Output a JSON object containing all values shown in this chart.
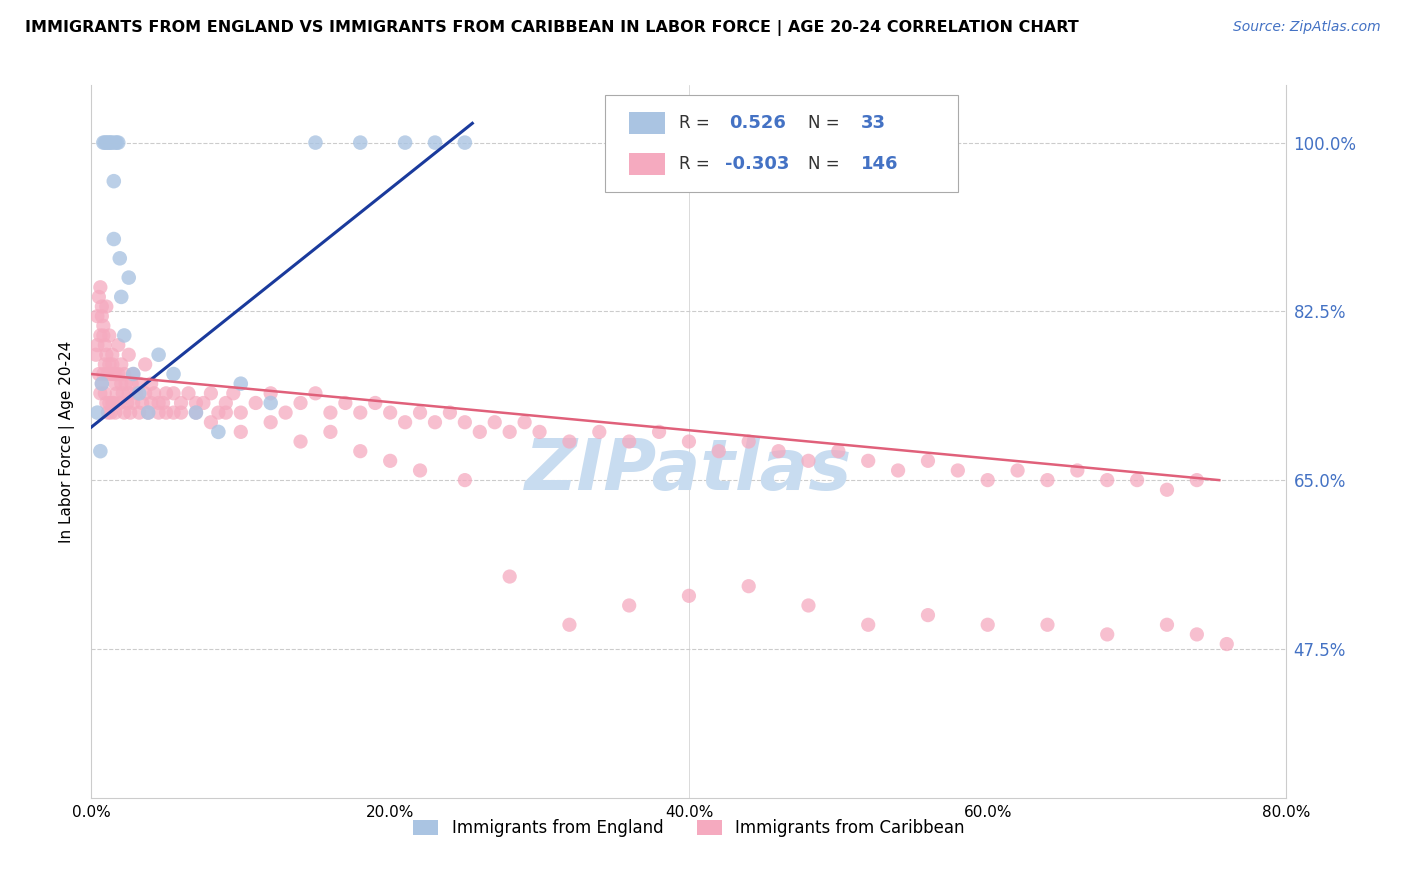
{
  "title": "IMMIGRANTS FROM ENGLAND VS IMMIGRANTS FROM CARIBBEAN IN LABOR FORCE | AGE 20-24 CORRELATION CHART",
  "source_text": "Source: ZipAtlas.com",
  "ylabel": "In Labor Force | Age 20-24",
  "x_tick_labels": [
    "0.0%",
    "20.0%",
    "40.0%",
    "60.0%",
    "80.0%"
  ],
  "x_tick_values": [
    0.0,
    0.2,
    0.4,
    0.6,
    0.8
  ],
  "y_tick_labels": [
    "100.0%",
    "82.5%",
    "65.0%",
    "47.5%"
  ],
  "y_tick_values": [
    1.0,
    0.825,
    0.65,
    0.475
  ],
  "xlim": [
    0.0,
    0.8
  ],
  "ylim": [
    0.32,
    1.06
  ],
  "R_england": 0.526,
  "N_england": 33,
  "R_caribbean": -0.303,
  "N_caribbean": 146,
  "england_scatter_color": "#aac4e2",
  "england_line_color": "#1a3a9c",
  "caribbean_scatter_color": "#f5aabf",
  "caribbean_line_color": "#e0607a",
  "watermark": "ZIPatlas",
  "watermark_color": "#c8dcf0",
  "grid_color": "#cccccc",
  "legend_r_n_color": "#4472c4",
  "legend_entries": [
    {
      "label": "Immigrants from England",
      "color": "#aac4e2"
    },
    {
      "label": "Immigrants from Caribbean",
      "color": "#f5aabf"
    }
  ],
  "eng_x": [
    0.004,
    0.006,
    0.007,
    0.008,
    0.009,
    0.01,
    0.011,
    0.012,
    0.013,
    0.014,
    0.015,
    0.015,
    0.016,
    0.017,
    0.018,
    0.019,
    0.02,
    0.022,
    0.025,
    0.028,
    0.032,
    0.038,
    0.045,
    0.055,
    0.07,
    0.085,
    0.1,
    0.12,
    0.15,
    0.18,
    0.21,
    0.23,
    0.25
  ],
  "eng_y": [
    0.72,
    0.68,
    0.75,
    1.0,
    1.0,
    1.0,
    1.0,
    1.0,
    1.0,
    1.0,
    0.96,
    0.9,
    1.0,
    1.0,
    1.0,
    0.88,
    0.84,
    0.8,
    0.86,
    0.76,
    0.74,
    0.72,
    0.78,
    0.76,
    0.72,
    0.7,
    0.75,
    0.73,
    1.0,
    1.0,
    1.0,
    1.0,
    1.0
  ],
  "car_x": [
    0.003,
    0.004,
    0.005,
    0.005,
    0.006,
    0.006,
    0.007,
    0.007,
    0.008,
    0.008,
    0.009,
    0.009,
    0.01,
    0.01,
    0.011,
    0.011,
    0.012,
    0.012,
    0.013,
    0.013,
    0.014,
    0.014,
    0.015,
    0.015,
    0.016,
    0.016,
    0.017,
    0.018,
    0.019,
    0.02,
    0.021,
    0.022,
    0.023,
    0.024,
    0.025,
    0.026,
    0.027,
    0.028,
    0.03,
    0.032,
    0.034,
    0.036,
    0.038,
    0.04,
    0.042,
    0.045,
    0.048,
    0.05,
    0.055,
    0.06,
    0.065,
    0.07,
    0.075,
    0.08,
    0.085,
    0.09,
    0.095,
    0.1,
    0.11,
    0.12,
    0.13,
    0.14,
    0.15,
    0.16,
    0.17,
    0.18,
    0.19,
    0.2,
    0.21,
    0.22,
    0.23,
    0.24,
    0.25,
    0.26,
    0.27,
    0.28,
    0.29,
    0.3,
    0.32,
    0.34,
    0.36,
    0.38,
    0.4,
    0.42,
    0.44,
    0.46,
    0.48,
    0.5,
    0.52,
    0.54,
    0.56,
    0.58,
    0.6,
    0.62,
    0.64,
    0.66,
    0.68,
    0.7,
    0.72,
    0.74,
    0.004,
    0.006,
    0.007,
    0.008,
    0.009,
    0.01,
    0.012,
    0.014,
    0.016,
    0.018,
    0.02,
    0.022,
    0.025,
    0.028,
    0.032,
    0.036,
    0.04,
    0.045,
    0.05,
    0.055,
    0.06,
    0.07,
    0.08,
    0.09,
    0.1,
    0.12,
    0.14,
    0.16,
    0.18,
    0.2,
    0.22,
    0.25,
    0.28,
    0.32,
    0.36,
    0.4,
    0.44,
    0.48,
    0.52,
    0.56,
    0.6,
    0.64,
    0.68,
    0.72,
    0.74,
    0.76
  ],
  "car_y": [
    0.78,
    0.79,
    0.76,
    0.84,
    0.74,
    0.85,
    0.75,
    0.82,
    0.76,
    0.8,
    0.77,
    0.74,
    0.78,
    0.73,
    0.76,
    0.72,
    0.77,
    0.73,
    0.76,
    0.72,
    0.77,
    0.73,
    0.76,
    0.73,
    0.75,
    0.72,
    0.74,
    0.76,
    0.73,
    0.75,
    0.74,
    0.72,
    0.75,
    0.73,
    0.74,
    0.72,
    0.75,
    0.73,
    0.74,
    0.72,
    0.73,
    0.74,
    0.72,
    0.73,
    0.74,
    0.72,
    0.73,
    0.74,
    0.72,
    0.73,
    0.74,
    0.72,
    0.73,
    0.74,
    0.72,
    0.73,
    0.74,
    0.72,
    0.73,
    0.74,
    0.72,
    0.73,
    0.74,
    0.72,
    0.73,
    0.72,
    0.73,
    0.72,
    0.71,
    0.72,
    0.71,
    0.72,
    0.71,
    0.7,
    0.71,
    0.7,
    0.71,
    0.7,
    0.69,
    0.7,
    0.69,
    0.7,
    0.69,
    0.68,
    0.69,
    0.68,
    0.67,
    0.68,
    0.67,
    0.66,
    0.67,
    0.66,
    0.65,
    0.66,
    0.65,
    0.66,
    0.65,
    0.65,
    0.64,
    0.65,
    0.82,
    0.8,
    0.83,
    0.81,
    0.79,
    0.83,
    0.8,
    0.78,
    0.76,
    0.79,
    0.77,
    0.76,
    0.78,
    0.76,
    0.75,
    0.77,
    0.75,
    0.73,
    0.72,
    0.74,
    0.72,
    0.73,
    0.71,
    0.72,
    0.7,
    0.71,
    0.69,
    0.7,
    0.68,
    0.67,
    0.66,
    0.65,
    0.55,
    0.5,
    0.52,
    0.53,
    0.54,
    0.52,
    0.5,
    0.51,
    0.5,
    0.5,
    0.49,
    0.5,
    0.49,
    0.48
  ],
  "eng_line_x": [
    0.0,
    0.255
  ],
  "eng_line_y": [
    0.705,
    1.02
  ],
  "car_line_x": [
    0.0,
    0.755
  ],
  "car_line_y": [
    0.76,
    0.65
  ]
}
